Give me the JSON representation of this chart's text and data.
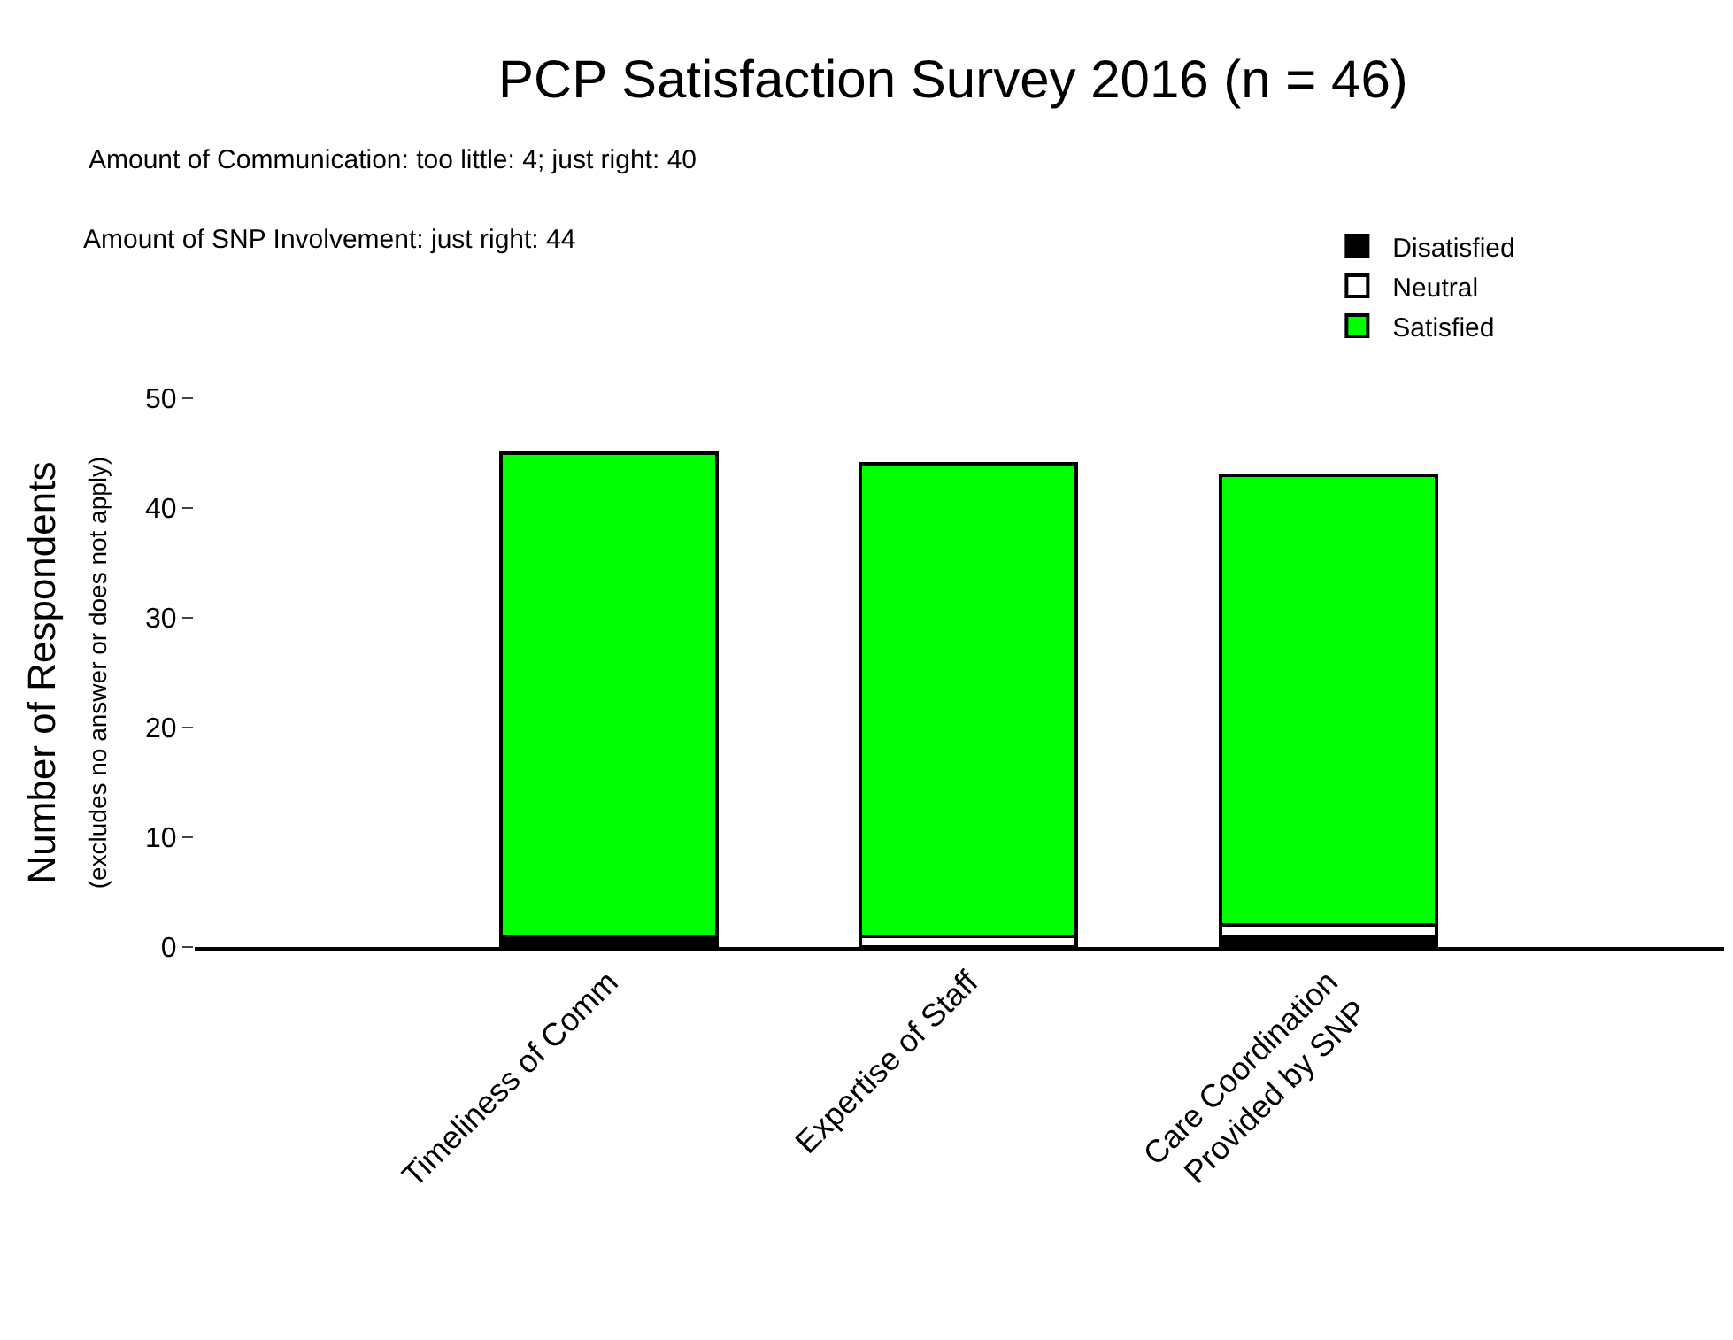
{
  "chart_data": {
    "type": "bar",
    "stacked": true,
    "title": "PCP Satisfaction Survey 2016 (n = 46)",
    "ylabel": "Number of Respondents\n(excludes no answer or does not apply)",
    "annotations": [
      "Amount of Communication: too little: 4; just right: 40",
      "Amount of SNP Involvement: just right: 44"
    ],
    "categories": [
      "Timeliness of Comm",
      "Expertise of Staff",
      "Care Coordination\nProvided by SNP"
    ],
    "series": [
      {
        "name": "Disatisfied",
        "color": "#000000",
        "values": [
          1,
          0,
          1
        ]
      },
      {
        "name": "Neutral",
        "color": "#ffffff",
        "values": [
          0,
          1,
          1
        ]
      },
      {
        "name": "Satisfied",
        "color": "#00ff00",
        "values": [
          44,
          43,
          41
        ]
      }
    ],
    "ylim": [
      0,
      50
    ],
    "yticks": [
      0,
      10,
      20,
      30,
      40,
      50
    ],
    "legend": "top right"
  }
}
